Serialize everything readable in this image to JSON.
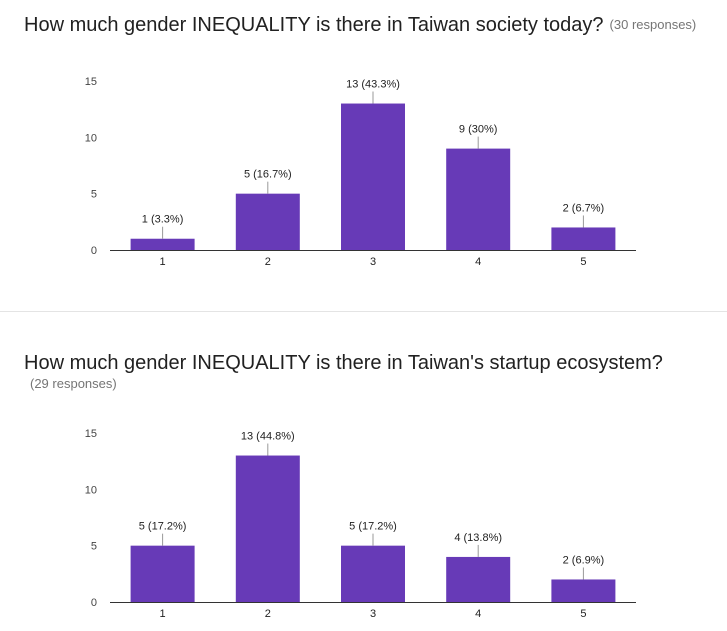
{
  "charts": [
    {
      "title": "How much gender INEQUALITY is there in Taiwan society today?",
      "responses": "(30 responses)"
    },
    {
      "title": "How much gender INEQUALITY is there in Taiwan's startup ecosystem?",
      "responses": "(29 responses)"
    }
  ],
  "colors": {
    "bar": "#673ab7",
    "axis": "#333333",
    "leader": "#999999"
  },
  "chart_data": [
    {
      "type": "bar",
      "title": "How much gender INEQUALITY is there in Taiwan society today?",
      "subtitle": "(30 responses)",
      "categories": [
        "1",
        "2",
        "3",
        "4",
        "5"
      ],
      "values": [
        1,
        5,
        13,
        9,
        2
      ],
      "data_labels": [
        "1 (3.3%)",
        "5 (16.7%)",
        "13 (43.3%)",
        "9 (30%)",
        "2 (6.7%)"
      ],
      "yticks": [
        0,
        5,
        10,
        15
      ],
      "ylim": [
        0,
        15
      ],
      "xlabel": "",
      "ylabel": "",
      "grid": false,
      "legend": "none"
    },
    {
      "type": "bar",
      "title": "How much gender INEQUALITY is there in Taiwan's startup ecosystem?",
      "subtitle": "(29 responses)",
      "categories": [
        "1",
        "2",
        "3",
        "4",
        "5"
      ],
      "values": [
        5,
        13,
        5,
        4,
        2
      ],
      "data_labels": [
        "5 (17.2%)",
        "13 (44.8%)",
        "5 (17.2%)",
        "4 (13.8%)",
        "2 (6.9%)"
      ],
      "yticks": [
        0,
        5,
        10,
        15
      ],
      "ylim": [
        0,
        15
      ],
      "xlabel": "",
      "ylabel": "",
      "grid": false,
      "legend": "none"
    }
  ]
}
